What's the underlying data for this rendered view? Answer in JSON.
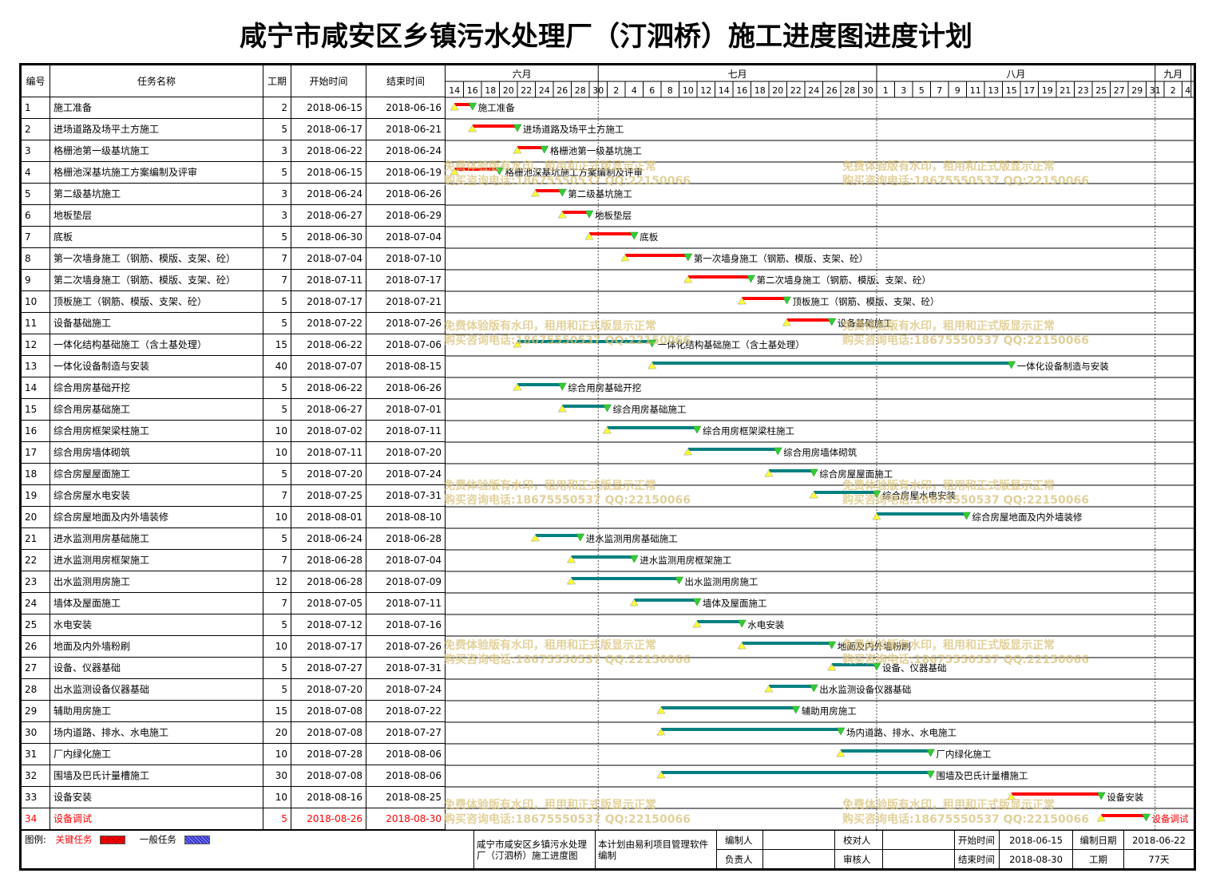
{
  "title": "咸宁市咸安区乡镇污水处理厂（汀泗桥）施工进度图进度计划",
  "columns": {
    "id": "编号",
    "name": "任务名称",
    "dur": "工期",
    "start": "开始时间",
    "end": "结束时间"
  },
  "months": [
    {
      "label": "六月",
      "start": "2018-06-14",
      "end": "2018-06-30"
    },
    {
      "label": "七月",
      "start": "2018-07-01",
      "end": "2018-07-31"
    },
    {
      "label": "八月",
      "start": "2018-08-01",
      "end": "2018-08-31"
    },
    {
      "label": "九月",
      "start": "2018-09-01",
      "end": "2018-09-04"
    }
  ],
  "day_ticks": [
    "14",
    "16",
    "18",
    "20",
    "22",
    "24",
    "26",
    "28",
    "30",
    "2",
    "4",
    "6",
    "8",
    "10",
    "12",
    "14",
    "16",
    "18",
    "20",
    "22",
    "24",
    "26",
    "28",
    "30",
    "1",
    "3",
    "5",
    "7",
    "9",
    "11",
    "13",
    "15",
    "17",
    "19",
    "21",
    "23",
    "25",
    "27",
    "29",
    "31",
    "2",
    "4"
  ],
  "chart_data": {
    "type": "gantt",
    "title": "咸宁市咸安区乡镇污水处理厂（汀泗桥）施工进度图进度计划",
    "x_range": [
      "2018-06-14",
      "2018-09-04"
    ],
    "tasks": [
      {
        "id": "1",
        "name": "施工准备",
        "duration": 2,
        "start": "2018-06-15",
        "end": "2018-06-16",
        "critical": true
      },
      {
        "id": "2",
        "name": "进场道路及场平土方施工",
        "duration": 5,
        "start": "2018-06-17",
        "end": "2018-06-21",
        "critical": true
      },
      {
        "id": "3",
        "name": "格栅池第一级基坑施工",
        "duration": 3,
        "start": "2018-06-22",
        "end": "2018-06-24",
        "critical": true
      },
      {
        "id": "4",
        "name": "格栅池深基坑施工方案编制及评审",
        "duration": 5,
        "start": "2018-06-15",
        "end": "2018-06-19",
        "critical": true
      },
      {
        "id": "5",
        "name": "第二级基坑施工",
        "duration": 3,
        "start": "2018-06-24",
        "end": "2018-06-26",
        "critical": true
      },
      {
        "id": "6",
        "name": "地板垫层",
        "duration": 3,
        "start": "2018-06-27",
        "end": "2018-06-29",
        "critical": true
      },
      {
        "id": "7",
        "name": "底板",
        "duration": 5,
        "start": "2018-06-30",
        "end": "2018-07-04",
        "critical": true
      },
      {
        "id": "8",
        "name": "第一次墙身施工（钢筋、模版、支架、砼）",
        "duration": 7,
        "start": "2018-07-04",
        "end": "2018-07-10",
        "critical": true
      },
      {
        "id": "9",
        "name": "第二次墙身施工（钢筋、模版、支架、砼）",
        "duration": 7,
        "start": "2018-07-11",
        "end": "2018-07-17",
        "critical": true
      },
      {
        "id": "10",
        "name": "顶板施工（钢筋、模版、支架、砼）",
        "duration": 5,
        "start": "2018-07-17",
        "end": "2018-07-21",
        "critical": true
      },
      {
        "id": "11",
        "name": "设备基础施工",
        "duration": 5,
        "start": "2018-07-22",
        "end": "2018-07-26",
        "critical": true
      },
      {
        "id": "12",
        "name": "一体化结构基础施工（含土基处理）",
        "duration": 15,
        "start": "2018-06-22",
        "end": "2018-07-06",
        "critical": false
      },
      {
        "id": "13",
        "name": "一体化设备制造与安装",
        "duration": 40,
        "start": "2018-07-07",
        "end": "2018-08-15",
        "critical": false
      },
      {
        "id": "14",
        "name": "综合用房基础开挖",
        "duration": 5,
        "start": "2018-06-22",
        "end": "2018-06-26",
        "critical": false
      },
      {
        "id": "15",
        "name": "综合用房基础施工",
        "duration": 5,
        "start": "2018-06-27",
        "end": "2018-07-01",
        "critical": false
      },
      {
        "id": "16",
        "name": "综合用房框架梁柱施工",
        "duration": 10,
        "start": "2018-07-02",
        "end": "2018-07-11",
        "critical": false
      },
      {
        "id": "17",
        "name": "综合用房墙体砌筑",
        "duration": 10,
        "start": "2018-07-11",
        "end": "2018-07-20",
        "critical": false
      },
      {
        "id": "18",
        "name": "综合房屋屋面施工",
        "duration": 5,
        "start": "2018-07-20",
        "end": "2018-07-24",
        "critical": false
      },
      {
        "id": "19",
        "name": "综合房屋水电安装",
        "duration": 7,
        "start": "2018-07-25",
        "end": "2018-07-31",
        "critical": false
      },
      {
        "id": "20",
        "name": "综合房屋地面及内外墙装修",
        "duration": 10,
        "start": "2018-08-01",
        "end": "2018-08-10",
        "critical": false
      },
      {
        "id": "21",
        "name": "进水监测用房基础施工",
        "duration": 5,
        "start": "2018-06-24",
        "end": "2018-06-28",
        "critical": false
      },
      {
        "id": "22",
        "name": "进水监测用房框架施工",
        "duration": 7,
        "start": "2018-06-28",
        "end": "2018-07-04",
        "critical": false
      },
      {
        "id": "23",
        "name": "出水监测用房施工",
        "duration": 12,
        "start": "2018-06-28",
        "end": "2018-07-09",
        "critical": false
      },
      {
        "id": "24",
        "name": "墙体及屋面施工",
        "duration": 7,
        "start": "2018-07-05",
        "end": "2018-07-11",
        "critical": false
      },
      {
        "id": "25",
        "name": "水电安装",
        "duration": 5,
        "start": "2018-07-12",
        "end": "2018-07-16",
        "critical": false
      },
      {
        "id": "26",
        "name": "地面及内外墙粉刷",
        "duration": 10,
        "start": "2018-07-17",
        "end": "2018-07-26",
        "critical": false
      },
      {
        "id": "27",
        "name": "设备、仪器基础",
        "duration": 5,
        "start": "2018-07-27",
        "end": "2018-07-31",
        "critical": false
      },
      {
        "id": "28",
        "name": "出水监测设备仪器基础",
        "duration": 5,
        "start": "2018-07-20",
        "end": "2018-07-24",
        "critical": false
      },
      {
        "id": "29",
        "name": "辅助用房施工",
        "duration": 15,
        "start": "2018-07-08",
        "end": "2018-07-22",
        "critical": false
      },
      {
        "id": "30",
        "name": "场内道路、排水、水电施工",
        "duration": 20,
        "start": "2018-07-08",
        "end": "2018-07-27",
        "critical": false
      },
      {
        "id": "31",
        "name": "厂内绿化施工",
        "duration": 10,
        "start": "2018-07-28",
        "end": "2018-08-06",
        "critical": false
      },
      {
        "id": "32",
        "name": "围墙及巴氏计量槽施工",
        "duration": 30,
        "start": "2018-07-08",
        "end": "2018-08-06",
        "critical": false
      },
      {
        "id": "33",
        "name": "设备安装",
        "duration": 10,
        "start": "2018-08-16",
        "end": "2018-08-25",
        "critical": true
      },
      {
        "id": "34",
        "name": "设备调试",
        "duration": 5,
        "start": "2018-08-26",
        "end": "2018-08-30",
        "critical": true,
        "highlight": true
      }
    ]
  },
  "colors": {
    "critical": "#ff0000",
    "normal": "#008080",
    "start_marker": "#ffff33",
    "end_marker": "#33cc33",
    "highlight_text": "#ff0000",
    "legend_normal": "#3333cc"
  },
  "legend": {
    "label": "图例:",
    "critical": "关键任务",
    "normal": "一般任务"
  },
  "footer": {
    "project_name": "咸宁市咸安区乡镇污水处理厂（汀泗桥）施工进度图",
    "note": "本计划由易利项目管理软件编制",
    "compiler_label": "编制人",
    "compiler_value": "",
    "checker_label": "校对人",
    "checker_value": "",
    "owner_label": "负责人",
    "owner_value": "",
    "reviewer_label": "审核人",
    "reviewer_value": "",
    "start_label": "开始时间",
    "start_value": "2018-06-15",
    "end_label": "结束时间",
    "end_value": "2018-08-30",
    "date_label": "编制日期",
    "date_value": "2018-06-22",
    "duration_label": "工期",
    "duration_value": "77天"
  },
  "watermark": {
    "line1": "免费体验版有水印，租用和正式版显示正常",
    "line2": "购买咨询电话:18675550537 QQ:22150066"
  }
}
